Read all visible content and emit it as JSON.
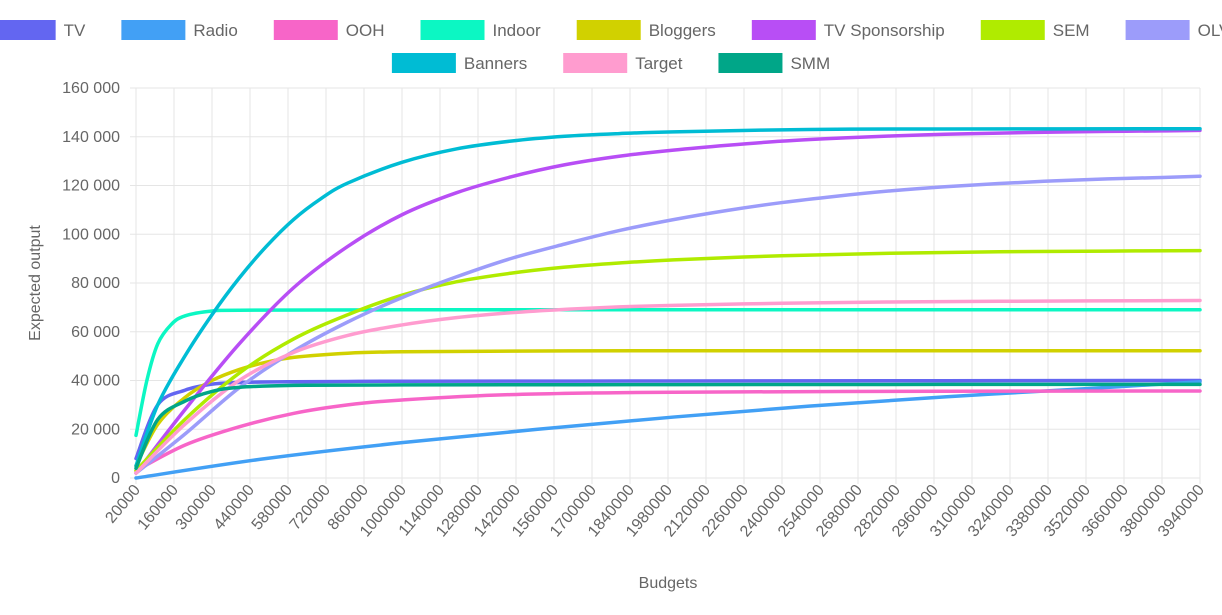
{
  "chart_data": {
    "type": "line",
    "xlabel": "Budgets",
    "ylabel": "Expected output",
    "x_ticks": [
      "20000",
      "160000",
      "300000",
      "440000",
      "580000",
      "720000",
      "860000",
      "1000000",
      "1140000",
      "1280000",
      "1420000",
      "1560000",
      "1700000",
      "1840000",
      "1980000",
      "2120000",
      "2260000",
      "2400000",
      "2540000",
      "2680000",
      "2820000",
      "2960000",
      "3100000",
      "3240000",
      "3380000",
      "3520000",
      "3660000",
      "3800000",
      "3940000"
    ],
    "y_ticks": [
      "0",
      "20 000",
      "40 000",
      "60 000",
      "80 000",
      "100 000",
      "120 000",
      "140 000",
      "160 000"
    ],
    "xlim": [
      20000,
      4000000
    ],
    "ylim": [
      0,
      160000
    ],
    "grid": true,
    "legend_position": "top",
    "series": [
      {
        "name": "TV",
        "color": "#6366f1",
        "x": [
          20000,
          100000,
          200000,
          300000,
          400000,
          600000,
          800000,
          1000000,
          2000000,
          3000000,
          4000000
        ],
        "values": [
          8000,
          30000,
          36000,
          38500,
          39200,
          39500,
          39600,
          39700,
          39800,
          39900,
          40000
        ]
      },
      {
        "name": "Radio",
        "color": "#42a0f5",
        "x": [
          20000,
          500000,
          1000000,
          1500000,
          2000000,
          2500000,
          3000000,
          3500000,
          4000000
        ],
        "values": [
          0,
          8000,
          14500,
          20000,
          25000,
          29500,
          33300,
          36500,
          39500
        ]
      },
      {
        "name": "OOH",
        "color": "#f765c8",
        "x": [
          20000,
          200000,
          400000,
          600000,
          800000,
          1000000,
          1400000,
          2000000,
          3000000,
          4000000
        ],
        "values": [
          3000,
          13500,
          21000,
          26500,
          30000,
          32000,
          34200,
          35200,
          35600,
          35700
        ]
      },
      {
        "name": "Indoor",
        "color": "#0cf7c3",
        "x": [
          20000,
          60000,
          100000,
          150000,
          200000,
          300000,
          400000,
          1000000,
          4000000
        ],
        "values": [
          17500,
          40000,
          55000,
          63000,
          66500,
          68500,
          68800,
          69000,
          69000
        ]
      },
      {
        "name": "Bloggers",
        "color": "#d1d100",
        "x": [
          20000,
          100000,
          200000,
          300000,
          400000,
          500000,
          600000,
          800000,
          1000000,
          1500000,
          2000000,
          4000000
        ],
        "values": [
          5000,
          22000,
          33000,
          40000,
          44500,
          47500,
          49500,
          51200,
          51800,
          52100,
          52200,
          52200
        ]
      },
      {
        "name": "TV Sponsorship",
        "color": "#b84ef5",
        "x": [
          20000,
          200000,
          400000,
          600000,
          800000,
          1000000,
          1200000,
          1400000,
          1600000,
          1800000,
          2000000,
          2200000,
          2400000,
          2600000,
          2800000,
          3000000,
          3200000,
          3400000,
          3600000,
          3800000,
          4000000
        ],
        "values": [
          2000,
          28000,
          55000,
          78000,
          95000,
          108000,
          117000,
          123500,
          128500,
          132000,
          134500,
          136500,
          138200,
          139400,
          140300,
          141000,
          141500,
          141900,
          142200,
          142400,
          142600
        ]
      },
      {
        "name": "SEM",
        "color": "#b0eb00",
        "x": [
          20000,
          200000,
          400000,
          600000,
          800000,
          1000000,
          1200000,
          1400000,
          1600000,
          1800000,
          2000000,
          2400000,
          2800000,
          3200000,
          3600000,
          4000000
        ],
        "values": [
          3000,
          24000,
          43000,
          57000,
          67000,
          75000,
          80500,
          84000,
          86500,
          88200,
          89500,
          91200,
          92200,
          92800,
          93100,
          93300
        ]
      },
      {
        "name": "OLV",
        "color": "#9c9cfa",
        "x": [
          20000,
          200000,
          400000,
          600000,
          800000,
          1000000,
          1200000,
          1400000,
          1600000,
          1800000,
          2000000,
          2200000,
          2400000,
          2600000,
          2800000,
          3000000,
          3200000,
          3400000,
          3600000,
          3800000,
          4000000
        ],
        "values": [
          2000,
          18000,
          37000,
          52000,
          64000,
          74000,
          82500,
          90000,
          96000,
          101500,
          106000,
          109800,
          113000,
          115600,
          117800,
          119500,
          120800,
          121900,
          122700,
          123300,
          123800
        ]
      },
      {
        "name": "Banners",
        "color": "#00bcd4",
        "x": [
          20000,
          100000,
          200000,
          300000,
          400000,
          500000,
          600000,
          700000,
          800000,
          1000000,
          1200000,
          1400000,
          1600000,
          1800000,
          2000000,
          2500000,
          3000000,
          4000000
        ],
        "values": [
          5000,
          30000,
          50000,
          67000,
          82000,
          95000,
          106000,
          114500,
          121000,
          129500,
          135000,
          138200,
          140200,
          141300,
          142000,
          143000,
          143200,
          143300
        ]
      },
      {
        "name": "Target",
        "color": "#ff9ccf",
        "x": [
          20000,
          200000,
          400000,
          600000,
          800000,
          1000000,
          1200000,
          1400000,
          1600000,
          1800000,
          2000000,
          2400000,
          2800000,
          3200000,
          4000000
        ],
        "values": [
          2000,
          22000,
          40000,
          51500,
          58500,
          62800,
          65800,
          67800,
          69200,
          70200,
          70800,
          71700,
          72200,
          72500,
          72800
        ]
      },
      {
        "name": "SMM",
        "color": "#00a688",
        "x": [
          20000,
          100000,
          200000,
          300000,
          400000,
          600000,
          1000000,
          2000000,
          3000000,
          4000000
        ],
        "values": [
          4000,
          24000,
          31500,
          35500,
          37200,
          38000,
          38200,
          38300,
          38400,
          38400
        ]
      }
    ]
  }
}
